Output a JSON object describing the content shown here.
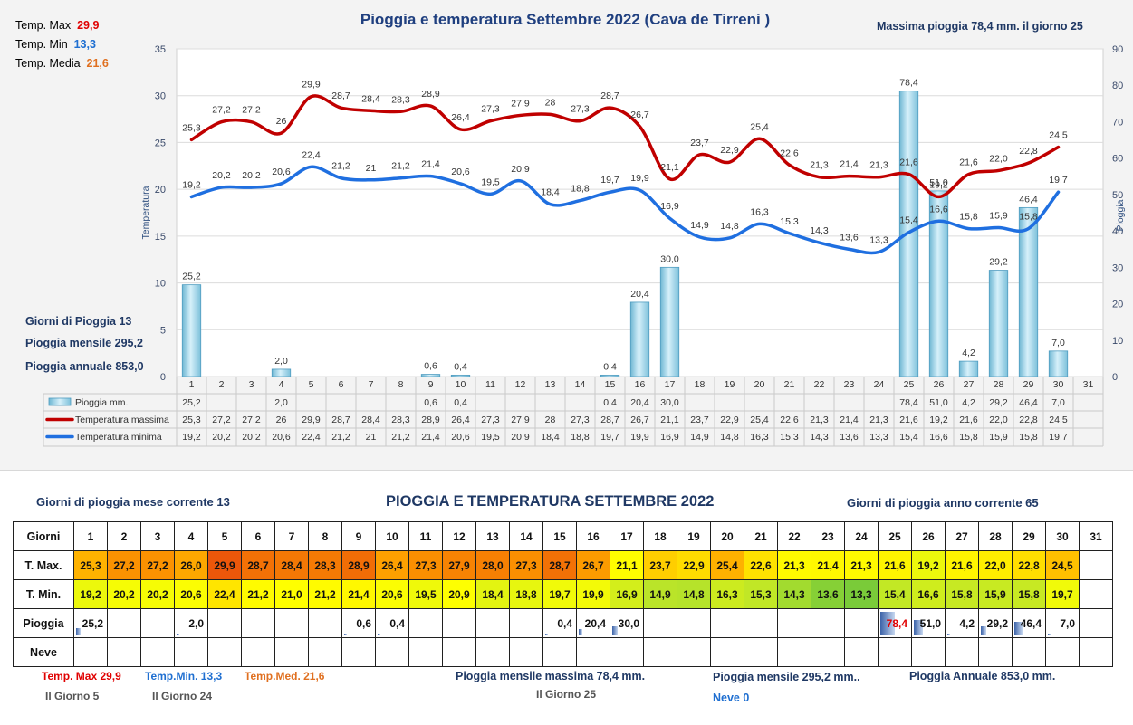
{
  "chart_data": {
    "type": "bar+line",
    "title": "Pioggia e temperatura Settembre 2022 (Cava de Tirreni )",
    "ylabel_left": "Temperatura",
    "ylabel_right": "Pioggia",
    "ylim_left": [
      0,
      35
    ],
    "ylim_right": [
      0,
      90
    ],
    "yticks_left": [
      "0",
      "5",
      "10",
      "15",
      "20",
      "25",
      "30",
      "35"
    ],
    "yticks_right": [
      "0",
      "10",
      "20",
      "30",
      "40",
      "50",
      "60",
      "70",
      "80",
      "90"
    ],
    "grid": true,
    "categories": [
      "1",
      "2",
      "3",
      "4",
      "5",
      "6",
      "7",
      "8",
      "9",
      "10",
      "11",
      "12",
      "13",
      "14",
      "15",
      "16",
      "17",
      "18",
      "19",
      "20",
      "21",
      "22",
      "23",
      "24",
      "25",
      "26",
      "27",
      "28",
      "29",
      "30",
      "31"
    ],
    "series": [
      {
        "name": "Pioggia mm.",
        "type": "bar",
        "axis": "right",
        "color": "#9fd3e6",
        "values": [
          25.2,
          null,
          null,
          2.0,
          null,
          null,
          null,
          null,
          0.6,
          0.4,
          null,
          null,
          null,
          null,
          0.4,
          20.4,
          30.0,
          null,
          null,
          null,
          null,
          null,
          null,
          null,
          78.4,
          51.0,
          4.2,
          29.2,
          46.4,
          7.0,
          null
        ],
        "labels": [
          "25,2",
          "",
          "",
          "2,0",
          "",
          "",
          "",
          "",
          "0,6",
          "0,4",
          "",
          "",
          "",
          "",
          "0,4",
          "20,4",
          "30,0",
          "",
          "",
          "",
          "",
          "",
          "",
          "",
          "78,4",
          "51,0",
          "4,2",
          "29,2",
          "46,4",
          "7,0",
          ""
        ]
      },
      {
        "name": "Temperatura massima",
        "type": "line",
        "axis": "left",
        "color": "#c00000",
        "values": [
          25.3,
          27.2,
          27.2,
          26,
          29.9,
          28.7,
          28.4,
          28.3,
          28.9,
          26.4,
          27.3,
          27.9,
          28,
          27.3,
          28.7,
          26.7,
          21.1,
          23.7,
          22.9,
          25.4,
          22.6,
          21.3,
          21.4,
          21.3,
          21.6,
          19.2,
          21.6,
          22.0,
          22.8,
          24.5,
          null
        ],
        "labels": [
          "25,3",
          "27,2",
          "27,2",
          "26",
          "29,9",
          "28,7",
          "28,4",
          "28,3",
          "28,9",
          "26,4",
          "27,3",
          "27,9",
          "28",
          "27,3",
          "28,7",
          "26,7",
          "21,1",
          "23,7",
          "22,9",
          "25,4",
          "22,6",
          "21,3",
          "21,4",
          "21,3",
          "21,6",
          "19,2",
          "21,6",
          "22,0",
          "22,8",
          "24,5",
          ""
        ]
      },
      {
        "name": "Temperatura minima",
        "type": "line",
        "axis": "left",
        "color": "#1f6fe0",
        "values": [
          19.2,
          20.2,
          20.2,
          20.6,
          22.4,
          21.2,
          21,
          21.2,
          21.4,
          20.6,
          19.5,
          20.9,
          18.4,
          18.8,
          19.7,
          19.9,
          16.9,
          14.9,
          14.8,
          16.3,
          15.3,
          14.3,
          13.6,
          13.3,
          15.4,
          16.6,
          15.8,
          15.9,
          15.8,
          19.7,
          null
        ],
        "labels": [
          "19,2",
          "20,2",
          "20,2",
          "20,6",
          "22,4",
          "21,2",
          "21",
          "21,2",
          "21,4",
          "20,6",
          "19,5",
          "20,9",
          "18,4",
          "18,8",
          "19,7",
          "19,9",
          "16,9",
          "14,9",
          "14,8",
          "16,3",
          "15,3",
          "14,3",
          "13,6",
          "13,3",
          "15,4",
          "16,6",
          "15,8",
          "15,9",
          "15,8",
          "19,7",
          ""
        ]
      }
    ]
  },
  "top_stats": {
    "max_label": "Temp. Max",
    "max_value": "29,9",
    "min_label": "Temp. Min",
    "min_value": "13,3",
    "avg_label": "Temp. Media",
    "avg_value": "21,6",
    "max_rain_text": "Massima pioggia  78,4 mm. il giorno  25",
    "rain_days": "Giorni di Pioggia  13",
    "monthly_rain": "Pioggia mensile  295,2",
    "annual_rain": "Pioggia annuale  853,0"
  },
  "table_section": {
    "title": "PIOGGIA E TEMPERATURA SETTEMBRE 2022",
    "rain_days_month": "Giorni di pioggia mese corrente    13",
    "rain_days_year": "Giorni di pioggia anno corrente  65",
    "row_labels": [
      "Giorni",
      "T. Max.",
      "T. Min.",
      "Pioggia",
      "Neve"
    ],
    "tmax": [
      "25,3",
      "27,2",
      "27,2",
      "26,0",
      "29,9",
      "28,7",
      "28,4",
      "28,3",
      "28,9",
      "26,4",
      "27,3",
      "27,9",
      "28,0",
      "27,3",
      "28,7",
      "26,7",
      "21,1",
      "23,7",
      "22,9",
      "25,4",
      "22,6",
      "21,3",
      "21,4",
      "21,3",
      "21,6",
      "19,2",
      "21,6",
      "22,0",
      "22,8",
      "24,5",
      ""
    ],
    "tmin": [
      "19,2",
      "20,2",
      "20,2",
      "20,6",
      "22,4",
      "21,2",
      "21,0",
      "21,2",
      "21,4",
      "20,6",
      "19,5",
      "20,9",
      "18,4",
      "18,8",
      "19,7",
      "19,9",
      "16,9",
      "14,9",
      "14,8",
      "16,3",
      "15,3",
      "14,3",
      "13,6",
      "13,3",
      "15,4",
      "16,6",
      "15,8",
      "15,9",
      "15,8",
      "19,7",
      ""
    ],
    "rain": [
      "25,2",
      "",
      "",
      "2,0",
      "",
      "",
      "",
      "",
      "0,6",
      "0,4",
      "",
      "",
      "",
      "",
      "0,4",
      "20,4",
      "30,0",
      "",
      "",
      "",
      "",
      "",
      "",
      "",
      "78,4",
      "51,0",
      "4,2",
      "29,2",
      "46,4",
      "7,0",
      ""
    ]
  },
  "footer": {
    "tmax": "Temp. Max 29,9",
    "tmax_day": "Il Giorno   5",
    "tmin": "Temp.Min.  13,3",
    "tmin_day": "Il Giorno 24",
    "tmed": "Temp.Med. 21,6",
    "max_monthly_rain": "Pioggia mensile massima 78,4   mm.",
    "max_rain_day": "Il Giorno 25",
    "monthly_rain": "Pioggia mensile  295,2 mm..",
    "snow": "Neve 0",
    "annual_rain": "Pioggia Annuale  853,0    mm."
  }
}
